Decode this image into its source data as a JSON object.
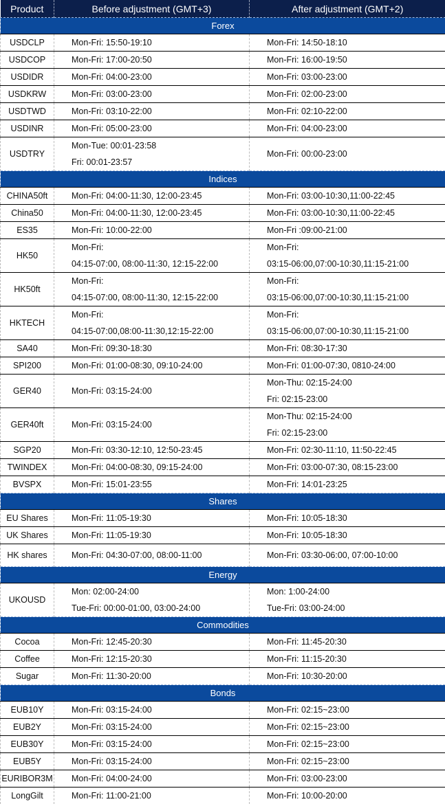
{
  "header": {
    "product": "Product",
    "before": "Before adjustment (GMT+3)",
    "after": "After adjustment (GMT+2)"
  },
  "colors": {
    "header_bg": "#0c1f4b",
    "section_bg": "#0b4a9d"
  },
  "sections": [
    {
      "title": "Forex",
      "rows": [
        {
          "product": "USDCLP",
          "before": [
            "Mon-Fri: 15:50-19:10"
          ],
          "after": [
            "Mon-Fri: 14:50-18:10"
          ]
        },
        {
          "product": "USDCOP",
          "before": [
            "Mon-Fri: 17:00-20:50"
          ],
          "after": [
            "Mon-Fri: 16:00-19:50"
          ]
        },
        {
          "product": "USDIDR",
          "before": [
            "Mon-Fri: 04:00-23:00"
          ],
          "after": [
            "Mon-Fri: 03:00-23:00"
          ]
        },
        {
          "product": "USDKRW",
          "before": [
            "Mon-Fri: 03:00-23:00"
          ],
          "after": [
            "Mon-Fri: 02:00-23:00"
          ]
        },
        {
          "product": "USDTWD",
          "before": [
            "Mon-Fri: 03:10-22:00"
          ],
          "after": [
            "Mon-Fri: 02:10-22:00"
          ]
        },
        {
          "product": "USDINR",
          "before": [
            "Mon-Fri: 05:00-23:00"
          ],
          "after": [
            "Mon-Fri: 04:00-23:00"
          ]
        },
        {
          "product": "USDTRY",
          "before": [
            "Mon-Tue: 00:01-23:58",
            "Fri: 00:01-23:57"
          ],
          "after": [
            "Mon-Fri: 00:00-23:00"
          ]
        }
      ]
    },
    {
      "title": "Indices",
      "rows": [
        {
          "product": "CHINA50ft",
          "before": [
            "Mon-Fri: 04:00-11:30, 12:00-23:45"
          ],
          "after": [
            "Mon-Fri: 03:00-10:30,11:00-22:45"
          ]
        },
        {
          "product": "China50",
          "before": [
            "Mon-Fri: 04:00-11:30, 12:00-23:45"
          ],
          "after": [
            "Mon-Fri: 03:00-10:30,11:00-22:45"
          ]
        },
        {
          "product": "ES35",
          "before": [
            "Mon-Fri: 10:00-22:00"
          ],
          "after": [
            "Mon-Fri :09:00-21:00"
          ]
        },
        {
          "product": "HK50",
          "before": [
            "Mon-Fri:",
            "04:15-07:00, 08:00-11:30, 12:15-22:00"
          ],
          "after": [
            "Mon-Fri:",
            "03:15-06:00,07:00-10:30,11:15-21:00"
          ]
        },
        {
          "product": "HK50ft",
          "before": [
            "Mon-Fri:",
            "04:15-07:00, 08:00-11:30, 12:15-22:00"
          ],
          "after": [
            "Mon-Fri:",
            "03:15-06:00,07:00-10:30,11:15-21:00"
          ]
        },
        {
          "product": "HKTECH",
          "before": [
            "Mon-Fri:",
            "04:15-07:00,08:00-11:30,12:15-22:00"
          ],
          "after": [
            "Mon-Fri:",
            "03:15-06:00,07:00-10:30,11:15-21:00"
          ]
        },
        {
          "product": "SA40",
          "before": [
            "Mon-Fri: 09:30-18:30"
          ],
          "after": [
            "Mon-Fri: 08:30-17:30"
          ]
        },
        {
          "product": "SPI200",
          "before": [
            "Mon-Fri: 01:00-08:30, 09:10-24:00"
          ],
          "after": [
            "Mon-Fri: 01:00-07:30, 0810-24:00"
          ]
        },
        {
          "product": "GER40",
          "before": [
            "Mon-Fri: 03:15-24:00"
          ],
          "after": [
            "Mon-Thu: 02:15-24:00",
            "Fri: 02:15-23:00"
          ]
        },
        {
          "product": "GER40ft",
          "before": [
            "Mon-Fri: 03:15-24:00"
          ],
          "after": [
            "Mon-Thu: 02:15-24:00",
            "Fri: 02:15-23:00"
          ]
        },
        {
          "product": "SGP20",
          "before": [
            "Mon-Fri: 03:30-12:10, 12:50-23:45"
          ],
          "after": [
            "Mon-Fri: 02:30-11:10, 11:50-22:45"
          ]
        },
        {
          "product": "TWINDEX",
          "before": [
            "Mon-Fri: 04:00-08:30, 09:15-24:00"
          ],
          "after": [
            "Mon-Fri: 03:00-07:30, 08:15-23:00"
          ]
        },
        {
          "product": "BVSPX",
          "before": [
            "Mon-Fri: 15:01-23:55"
          ],
          "after": [
            "Mon-Fri: 14:01-23:25"
          ]
        }
      ]
    },
    {
      "title": "Shares",
      "rows": [
        {
          "product": "EU Shares",
          "before": [
            "Mon-Fri: 11:05-19:30"
          ],
          "after": [
            "Mon-Fri: 10:05-18:30"
          ]
        },
        {
          "product": "UK Shares",
          "before": [
            "Mon-Fri: 11:05-19:30"
          ],
          "after": [
            "Mon-Fri: 10:05-18:30"
          ]
        },
        {
          "product": "HK shares",
          "before": [
            "Mon-Fri: 04:30-07:00, 08:00-11:00"
          ],
          "after": [
            "Mon-Fri: 03:30-06:00, 07:00-10:00"
          ]
        }
      ]
    },
    {
      "title": "Energy",
      "rows": [
        {
          "product": "UKOUSD",
          "before": [
            "Mon: 02:00-24:00",
            "Tue-Fri: 00:00-01:00, 03:00-24:00"
          ],
          "after": [
            "Mon: 1:00-24:00",
            "Tue-Fri: 03:00-24:00"
          ]
        }
      ]
    },
    {
      "title": "Commodities",
      "rows": [
        {
          "product": "Cocoa",
          "before": [
            "Mon-Fri: 12:45-20:30"
          ],
          "after": [
            "Mon-Fri: 11:45-20:30"
          ]
        },
        {
          "product": "Coffee",
          "before": [
            "Mon-Fri: 12:15-20:30"
          ],
          "after": [
            "Mon-Fri: 11:15-20:30"
          ]
        },
        {
          "product": "Sugar",
          "before": [
            "Mon-Fri: 11:30-20:00"
          ],
          "after": [
            "Mon-Fri: 10:30-20:00"
          ]
        }
      ]
    },
    {
      "title": "Bonds",
      "rows": [
        {
          "product": "EUB10Y",
          "before": [
            "Mon-Fri: 03:15-24:00"
          ],
          "after": [
            "Mon-Fri: 02:15~23:00"
          ]
        },
        {
          "product": "EUB2Y",
          "before": [
            "Mon-Fri: 03:15-24:00"
          ],
          "after": [
            "Mon-Fri: 02:15~23:00"
          ]
        },
        {
          "product": "EUB30Y",
          "before": [
            "Mon-Fri: 03:15-24:00"
          ],
          "after": [
            "Mon-Fri: 02:15~23:00"
          ]
        },
        {
          "product": "EUB5Y",
          "before": [
            "Mon-Fri: 03:15-24:00"
          ],
          "after": [
            "Mon-Fri: 02:15~23:00"
          ]
        },
        {
          "product": "EURIBOR3M",
          "before": [
            "Mon-Fri: 04:00-24:00"
          ],
          "after": [
            "Mon-Fri: 03:00-23:00"
          ]
        },
        {
          "product": "LongGilt",
          "before": [
            "Mon-Fri: 11:00-21:00"
          ],
          "after": [
            "Mon-Fri: 10:00-20:00"
          ]
        }
      ]
    }
  ]
}
